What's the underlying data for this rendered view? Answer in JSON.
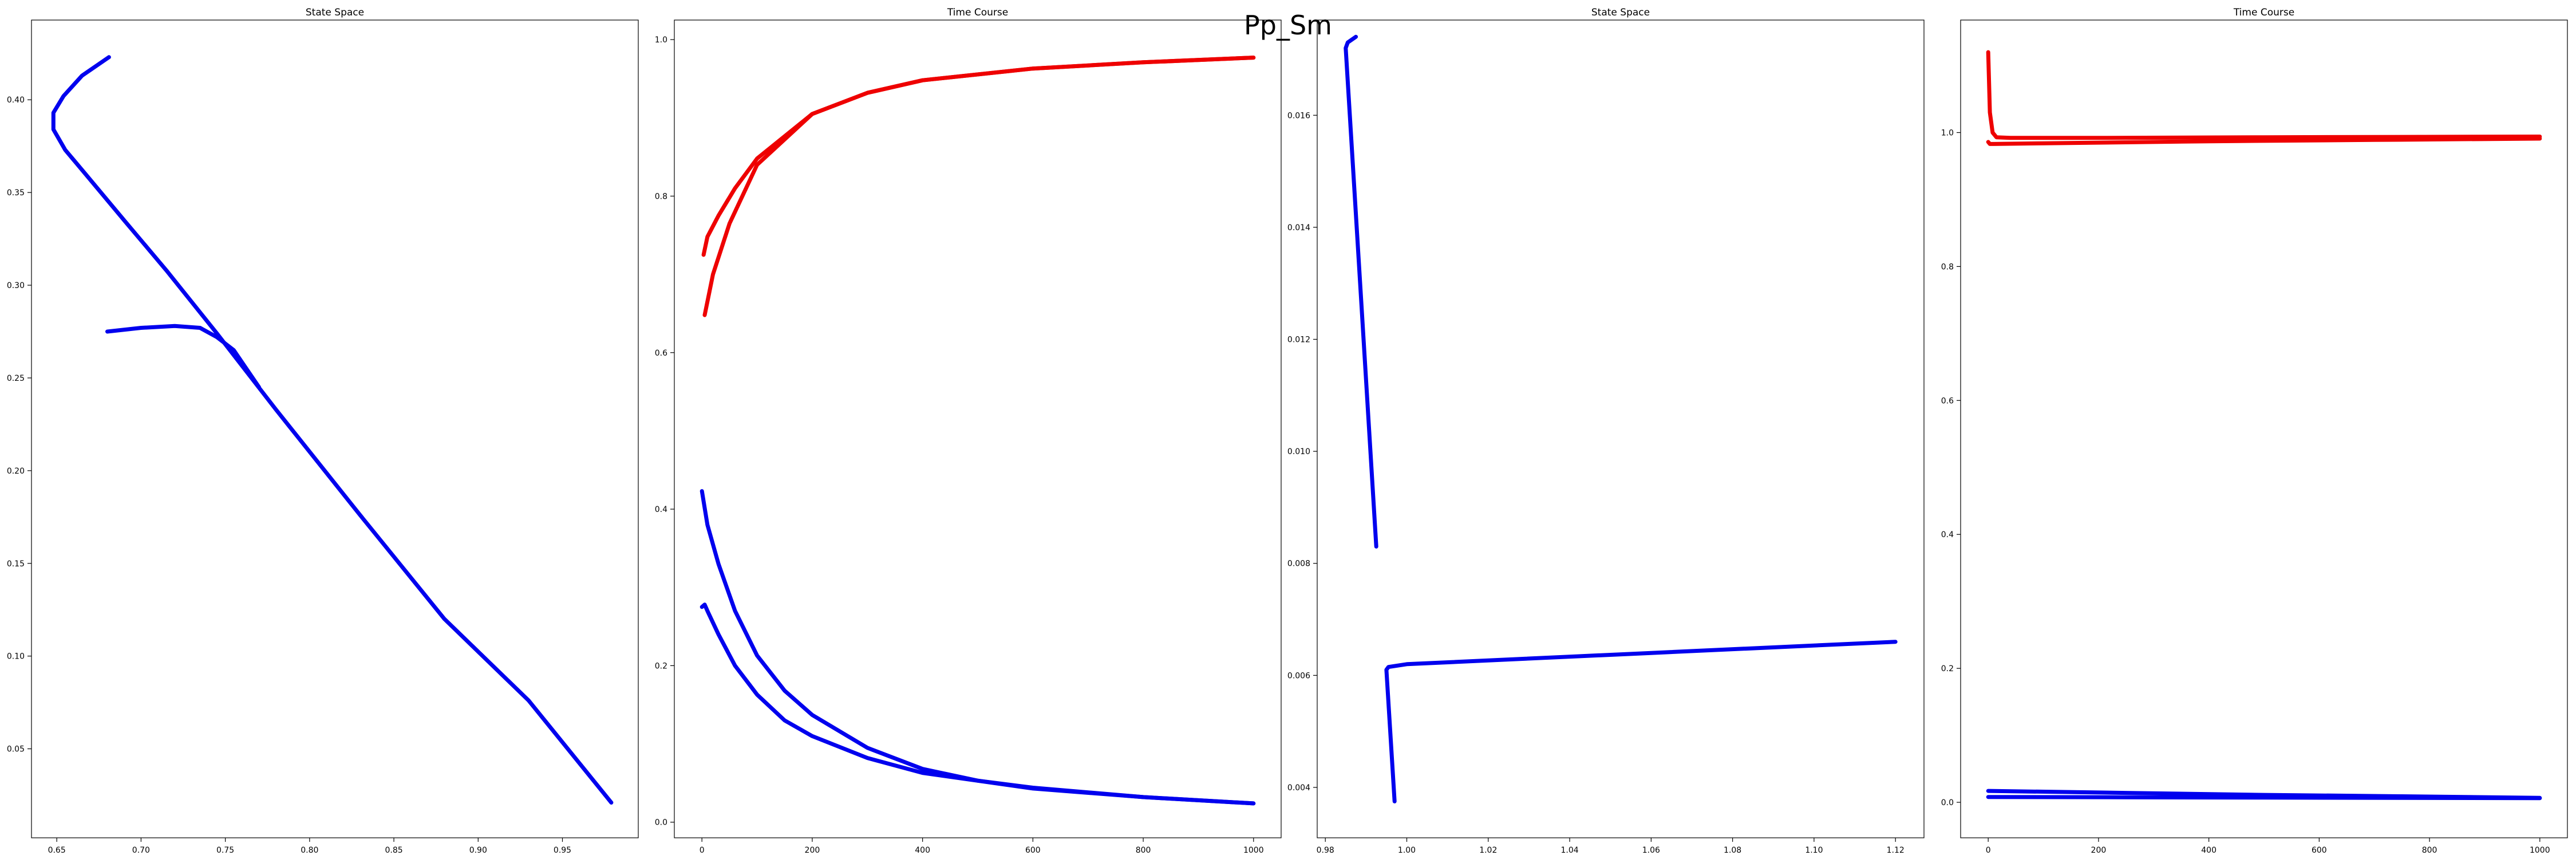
{
  "suptitle": "Pp_Sm",
  "colors": {
    "blue": "#0000ee",
    "red": "#ee0000"
  },
  "chart_data": [
    {
      "type": "line",
      "title": "State Space",
      "xlim": [
        0.635,
        0.995
      ],
      "ylim": [
        0.002,
        0.443
      ],
      "xticks": [
        0.65,
        0.7,
        0.75,
        0.8,
        0.85,
        0.9,
        0.95
      ],
      "xtick_labels": [
        "0.65",
        "0.70",
        "0.75",
        "0.80",
        "0.85",
        "0.90",
        "0.95"
      ],
      "yticks": [
        0.05,
        0.1,
        0.15,
        0.2,
        0.25,
        0.3,
        0.35,
        0.4
      ],
      "ytick_labels": [
        "0.05",
        "0.10",
        "0.15",
        "0.20",
        "0.25",
        "0.30",
        "0.35",
        "0.40"
      ],
      "series": [
        {
          "color": "blue",
          "points": [
            [
              0.681,
              0.423
            ],
            [
              0.665,
              0.413
            ],
            [
              0.654,
              0.402
            ],
            [
              0.648,
              0.393
            ],
            [
              0.648,
              0.384
            ],
            [
              0.655,
              0.373
            ],
            [
              0.667,
              0.36
            ],
            [
              0.69,
              0.335
            ],
            [
              0.715,
              0.308
            ],
            [
              0.745,
              0.274
            ],
            [
              0.78,
              0.233
            ],
            [
              0.83,
              0.176
            ],
            [
              0.88,
              0.12
            ],
            [
              0.93,
              0.076
            ],
            [
              0.979,
              0.021
            ]
          ]
        },
        {
          "color": "blue",
          "points": [
            [
              0.68,
              0.275
            ],
            [
              0.7,
              0.277
            ],
            [
              0.72,
              0.278
            ],
            [
              0.735,
              0.277
            ],
            [
              0.745,
              0.272
            ],
            [
              0.755,
              0.265
            ],
            [
              0.77,
              0.245
            ]
          ]
        }
      ]
    },
    {
      "type": "line",
      "title": "Time Course",
      "xlim": [
        -50,
        1050
      ],
      "ylim": [
        -0.02,
        1.025
      ],
      "xticks": [
        0,
        200,
        400,
        600,
        800,
        1000
      ],
      "xtick_labels": [
        "0",
        "200",
        "400",
        "600",
        "800",
        "1000"
      ],
      "yticks": [
        0.0,
        0.2,
        0.4,
        0.6,
        0.8,
        1.0
      ],
      "ytick_labels": [
        "0.0",
        "0.2",
        "0.4",
        "0.6",
        "0.8",
        "1.0"
      ],
      "series": [
        {
          "color": "red",
          "points": [
            [
              5,
              0.648
            ],
            [
              20,
              0.7
            ],
            [
              50,
              0.765
            ],
            [
              100,
              0.84
            ],
            [
              200,
              0.905
            ],
            [
              300,
              0.932
            ],
            [
              400,
              0.948
            ],
            [
              600,
              0.963
            ],
            [
              800,
              0.971
            ],
            [
              1000,
              0.977
            ]
          ]
        },
        {
          "color": "red",
          "points": [
            [
              3,
              0.725
            ],
            [
              10,
              0.748
            ],
            [
              30,
              0.775
            ],
            [
              60,
              0.81
            ],
            [
              100,
              0.848
            ],
            [
              200,
              0.905
            ],
            [
              300,
              0.932
            ],
            [
              400,
              0.948
            ],
            [
              600,
              0.963
            ],
            [
              800,
              0.971
            ],
            [
              1000,
              0.977
            ]
          ]
        },
        {
          "color": "blue",
          "points": [
            [
              0,
              0.423
            ],
            [
              10,
              0.38
            ],
            [
              30,
              0.33
            ],
            [
              60,
              0.27
            ],
            [
              100,
              0.213
            ],
            [
              150,
              0.168
            ],
            [
              200,
              0.137
            ],
            [
              300,
              0.095
            ],
            [
              400,
              0.068
            ],
            [
              500,
              0.053
            ],
            [
              600,
              0.044
            ],
            [
              800,
              0.032
            ],
            [
              1000,
              0.024
            ]
          ]
        },
        {
          "color": "blue",
          "points": [
            [
              0,
              0.275
            ],
            [
              5,
              0.278
            ],
            [
              10,
              0.27
            ],
            [
              30,
              0.24
            ],
            [
              60,
              0.2
            ],
            [
              100,
              0.163
            ],
            [
              150,
              0.13
            ],
            [
              200,
              0.11
            ],
            [
              300,
              0.082
            ],
            [
              400,
              0.063
            ],
            [
              600,
              0.043
            ],
            [
              800,
              0.032
            ],
            [
              1000,
              0.024
            ]
          ]
        }
      ]
    },
    {
      "type": "line",
      "title": "State Space",
      "xlim": [
        0.978,
        1.127
      ],
      "ylim": [
        0.0031,
        0.0177
      ],
      "xticks": [
        0.98,
        1.0,
        1.02,
        1.04,
        1.06,
        1.08,
        1.1,
        1.12
      ],
      "xtick_labels": [
        "0.98",
        "1.00",
        "1.02",
        "1.04",
        "1.06",
        "1.08",
        "1.10",
        "1.12"
      ],
      "yticks": [
        0.004,
        0.006,
        0.008,
        0.01,
        0.012,
        0.014,
        0.016
      ],
      "ytick_labels": [
        "0.004",
        "0.006",
        "0.008",
        "0.010",
        "0.012",
        "0.014",
        "0.016"
      ],
      "series": [
        {
          "color": "blue",
          "points": [
            [
              0.9875,
              0.0174
            ],
            [
              0.9855,
              0.0173
            ],
            [
              0.985,
              0.0172
            ],
            [
              0.9925,
              0.0083
            ]
          ]
        },
        {
          "color": "blue",
          "points": [
            [
              1.12,
              0.0066
            ],
            [
              1.06,
              0.0064
            ],
            [
              1.0,
              0.0062
            ],
            [
              0.9955,
              0.00615
            ],
            [
              0.995,
              0.0061
            ],
            [
              0.997,
              0.00375
            ]
          ]
        }
      ]
    },
    {
      "type": "line",
      "title": "Time Course",
      "xlim": [
        -50,
        1050
      ],
      "ylim": [
        -0.053,
        1.168
      ],
      "xticks": [
        0,
        200,
        400,
        600,
        800,
        1000
      ],
      "xtick_labels": [
        "0",
        "200",
        "400",
        "600",
        "800",
        "1000"
      ],
      "yticks": [
        0.0,
        0.2,
        0.4,
        0.6,
        0.8,
        1.0
      ],
      "ytick_labels": [
        "0.0",
        "0.2",
        "0.4",
        "0.6",
        "0.8",
        "1.0"
      ],
      "series": [
        {
          "color": "red",
          "points": [
            [
              0,
              1.12
            ],
            [
              3,
              1.03
            ],
            [
              8,
              1.0
            ],
            [
              15,
              0.993
            ],
            [
              40,
              0.992
            ],
            [
              200,
              0.992
            ],
            [
              500,
              0.993
            ],
            [
              1000,
              0.994
            ]
          ]
        },
        {
          "color": "red",
          "points": [
            [
              0,
              0.986
            ],
            [
              3,
              0.983
            ],
            [
              10,
              0.983
            ],
            [
              100,
              0.984
            ],
            [
              400,
              0.987
            ],
            [
              700,
              0.989
            ],
            [
              1000,
              0.991
            ]
          ]
        },
        {
          "color": "blue",
          "points": [
            [
              0,
              0.017
            ],
            [
              250,
              0.014
            ],
            [
              500,
              0.011
            ],
            [
              750,
              0.009
            ],
            [
              1000,
              0.0066
            ]
          ]
        },
        {
          "color": "blue",
          "points": [
            [
              0,
              0.008
            ],
            [
              250,
              0.0075
            ],
            [
              500,
              0.007
            ],
            [
              750,
              0.0066
            ],
            [
              1000,
              0.0062
            ]
          ]
        }
      ]
    }
  ]
}
